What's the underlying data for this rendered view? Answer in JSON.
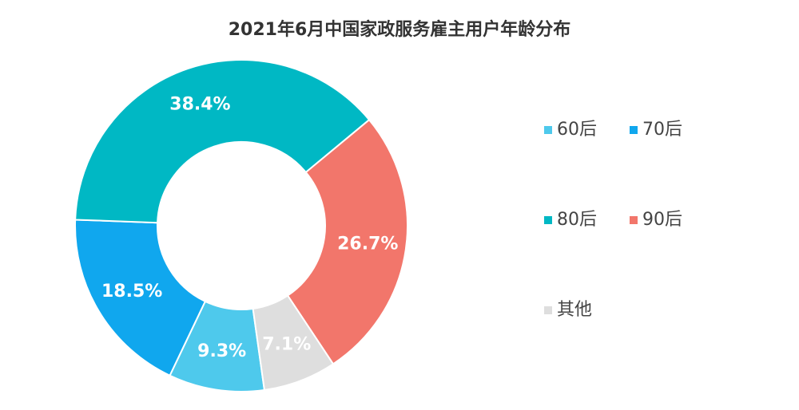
{
  "chart_data": {
    "type": "donut",
    "title": "2021年6月中国家政服务雇主用户年龄分布",
    "categories": [
      "60后",
      "70后",
      "80后",
      "90后",
      "其他"
    ],
    "values": [
      9.3,
      18.5,
      38.4,
      26.7,
      7.1
    ],
    "value_labels": [
      "9.3%",
      "18.5%",
      "38.4%",
      "26.7%",
      "7.1%"
    ],
    "colors": [
      "#4ec9ec",
      "#10a7ee",
      "#00b8c4",
      "#f2766b",
      "#dedede"
    ],
    "legend": "right"
  }
}
